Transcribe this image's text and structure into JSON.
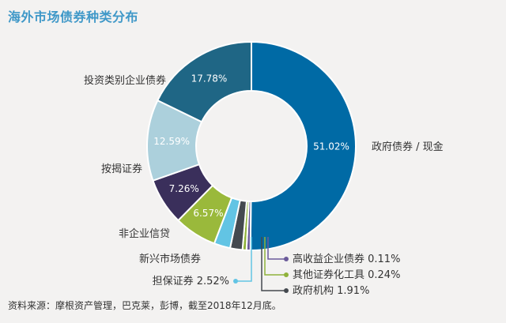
{
  "title": "海外市场债券种类分布",
  "source": "资料来源：摩根资产管理，巴克莱，彭博，截至2018年12月底。",
  "chart_data": {
    "type": "pie",
    "style": "donut",
    "series": [
      {
        "name": "政府债券 / 现金",
        "value": 51.02,
        "label": "51.02%",
        "color": "#006aa5"
      },
      {
        "name": "高收益企业债券",
        "value": 0.11,
        "label": "0.11%",
        "color": "#6b5b9a"
      },
      {
        "name": "其他证券化工具",
        "value": 0.24,
        "label": "0.24%",
        "color": "#8fb23a"
      },
      {
        "name": "政府机构",
        "value": 1.91,
        "label": "1.91%",
        "color": "#44494f"
      },
      {
        "name": "担保证券",
        "value": 2.52,
        "label": "2.52%",
        "color": "#62c4e4"
      },
      {
        "name": "新兴市场债券",
        "value": 6.57,
        "label": "6.57%",
        "color": "#9ab93b"
      },
      {
        "name": "非企业信贷",
        "value": 7.26,
        "label": "7.26%",
        "color": "#3a2f5b"
      },
      {
        "name": "按揭证券",
        "value": 12.59,
        "label": "12.59%",
        "color": "#acd0dc"
      },
      {
        "name": "投资类别企业债券",
        "value": 17.78,
        "label": "17.78%",
        "color": "#1f6685"
      }
    ]
  }
}
